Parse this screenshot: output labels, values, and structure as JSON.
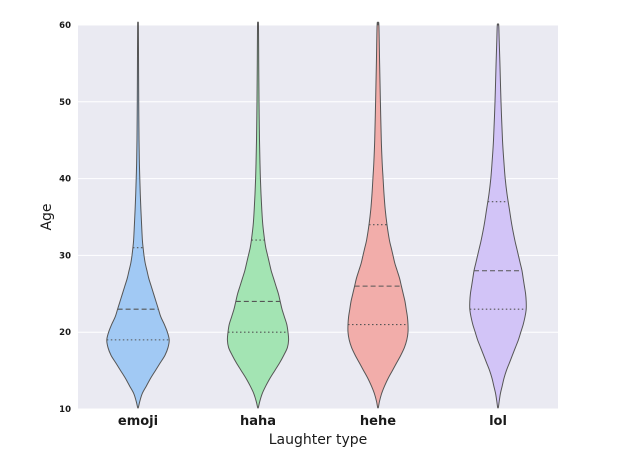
{
  "chart_data": {
    "type": "violin",
    "xlabel": "Laughter type",
    "ylabel": "Age",
    "ylim": [
      10,
      60
    ],
    "yticks": [
      10,
      20,
      30,
      40,
      50,
      60
    ],
    "grid": true,
    "background": "#EAEAF2",
    "categories": [
      "emoji",
      "haha",
      "hehe",
      "lol"
    ],
    "colors": [
      "#A1C9F4",
      "#A3E4B3",
      "#F2ADAA",
      "#D2C4F7"
    ],
    "edge_color": "#555555",
    "inner": "quartile",
    "violins": [
      {
        "name": "emoji",
        "q1": 19,
        "median": 23,
        "q3": 31,
        "profile": [
          [
            10.2,
            0.006
          ],
          [
            11,
            0.03
          ],
          [
            12,
            0.07
          ],
          [
            13,
            0.14
          ],
          [
            14,
            0.21
          ],
          [
            15,
            0.29
          ],
          [
            16,
            0.37
          ],
          [
            17,
            0.45
          ],
          [
            18,
            0.5
          ],
          [
            19,
            0.52
          ],
          [
            20,
            0.49
          ],
          [
            21,
            0.44
          ],
          [
            22,
            0.38
          ],
          [
            23,
            0.34
          ],
          [
            24,
            0.3
          ],
          [
            25,
            0.26
          ],
          [
            26,
            0.22
          ],
          [
            27,
            0.18
          ],
          [
            28,
            0.15
          ],
          [
            29,
            0.12
          ],
          [
            30,
            0.1
          ],
          [
            31,
            0.085
          ],
          [
            32,
            0.073
          ],
          [
            34,
            0.06
          ],
          [
            36,
            0.048
          ],
          [
            38,
            0.038
          ],
          [
            40,
            0.03
          ],
          [
            42,
            0.023
          ],
          [
            45,
            0.017
          ],
          [
            50,
            0.012
          ],
          [
            55,
            0.009
          ],
          [
            60,
            0.006
          ]
        ]
      },
      {
        "name": "haha",
        "q1": 20,
        "median": 24,
        "q3": 32,
        "profile": [
          [
            10.2,
            0.006
          ],
          [
            11,
            0.03
          ],
          [
            12,
            0.07
          ],
          [
            13,
            0.13
          ],
          [
            14,
            0.2
          ],
          [
            15,
            0.28
          ],
          [
            16,
            0.36
          ],
          [
            17,
            0.43
          ],
          [
            18,
            0.49
          ],
          [
            19,
            0.51
          ],
          [
            20,
            0.5
          ],
          [
            21,
            0.48
          ],
          [
            22,
            0.44
          ],
          [
            23,
            0.4
          ],
          [
            24,
            0.37
          ],
          [
            25,
            0.34
          ],
          [
            26,
            0.3
          ],
          [
            27,
            0.26
          ],
          [
            28,
            0.22
          ],
          [
            29,
            0.19
          ],
          [
            30,
            0.16
          ],
          [
            31,
            0.13
          ],
          [
            32,
            0.11
          ],
          [
            34,
            0.08
          ],
          [
            36,
            0.063
          ],
          [
            38,
            0.05
          ],
          [
            40,
            0.04
          ],
          [
            42,
            0.033
          ],
          [
            45,
            0.025
          ],
          [
            50,
            0.017
          ],
          [
            55,
            0.012
          ],
          [
            60,
            0.008
          ]
        ]
      },
      {
        "name": "hehe",
        "q1": 21,
        "median": 26,
        "q3": 34,
        "profile": [
          [
            10.2,
            0.006
          ],
          [
            11,
            0.025
          ],
          [
            12,
            0.06
          ],
          [
            13,
            0.11
          ],
          [
            14,
            0.17
          ],
          [
            15,
            0.24
          ],
          [
            16,
            0.31
          ],
          [
            17,
            0.38
          ],
          [
            18,
            0.44
          ],
          [
            19,
            0.48
          ],
          [
            20,
            0.5
          ],
          [
            21,
            0.5
          ],
          [
            22,
            0.49
          ],
          [
            23,
            0.47
          ],
          [
            24,
            0.45
          ],
          [
            25,
            0.42
          ],
          [
            26,
            0.39
          ],
          [
            27,
            0.36
          ],
          [
            28,
            0.32
          ],
          [
            29,
            0.28
          ],
          [
            30,
            0.25
          ],
          [
            31,
            0.22
          ],
          [
            32,
            0.19
          ],
          [
            34,
            0.15
          ],
          [
            36,
            0.12
          ],
          [
            38,
            0.1
          ],
          [
            40,
            0.085
          ],
          [
            42,
            0.07
          ],
          [
            45,
            0.055
          ],
          [
            50,
            0.04
          ],
          [
            55,
            0.027
          ],
          [
            60,
            0.015
          ]
        ]
      },
      {
        "name": "lol",
        "q1": 23,
        "median": 28,
        "q3": 37,
        "profile": [
          [
            10.2,
            0.006
          ],
          [
            11,
            0.02
          ],
          [
            12,
            0.04
          ],
          [
            13,
            0.07
          ],
          [
            14,
            0.1
          ],
          [
            15,
            0.14
          ],
          [
            16,
            0.19
          ],
          [
            17,
            0.24
          ],
          [
            18,
            0.29
          ],
          [
            19,
            0.34
          ],
          [
            20,
            0.38
          ],
          [
            21,
            0.42
          ],
          [
            22,
            0.45
          ],
          [
            23,
            0.47
          ],
          [
            24,
            0.47
          ],
          [
            25,
            0.46
          ],
          [
            26,
            0.44
          ],
          [
            27,
            0.42
          ],
          [
            28,
            0.4
          ],
          [
            29,
            0.37
          ],
          [
            30,
            0.34
          ],
          [
            31,
            0.31
          ],
          [
            32,
            0.28
          ],
          [
            34,
            0.23
          ],
          [
            36,
            0.19
          ],
          [
            38,
            0.15
          ],
          [
            40,
            0.12
          ],
          [
            42,
            0.1
          ],
          [
            45,
            0.075
          ],
          [
            50,
            0.05
          ],
          [
            55,
            0.032
          ],
          [
            58,
            0.02
          ],
          [
            60,
            0.012
          ]
        ]
      }
    ]
  }
}
